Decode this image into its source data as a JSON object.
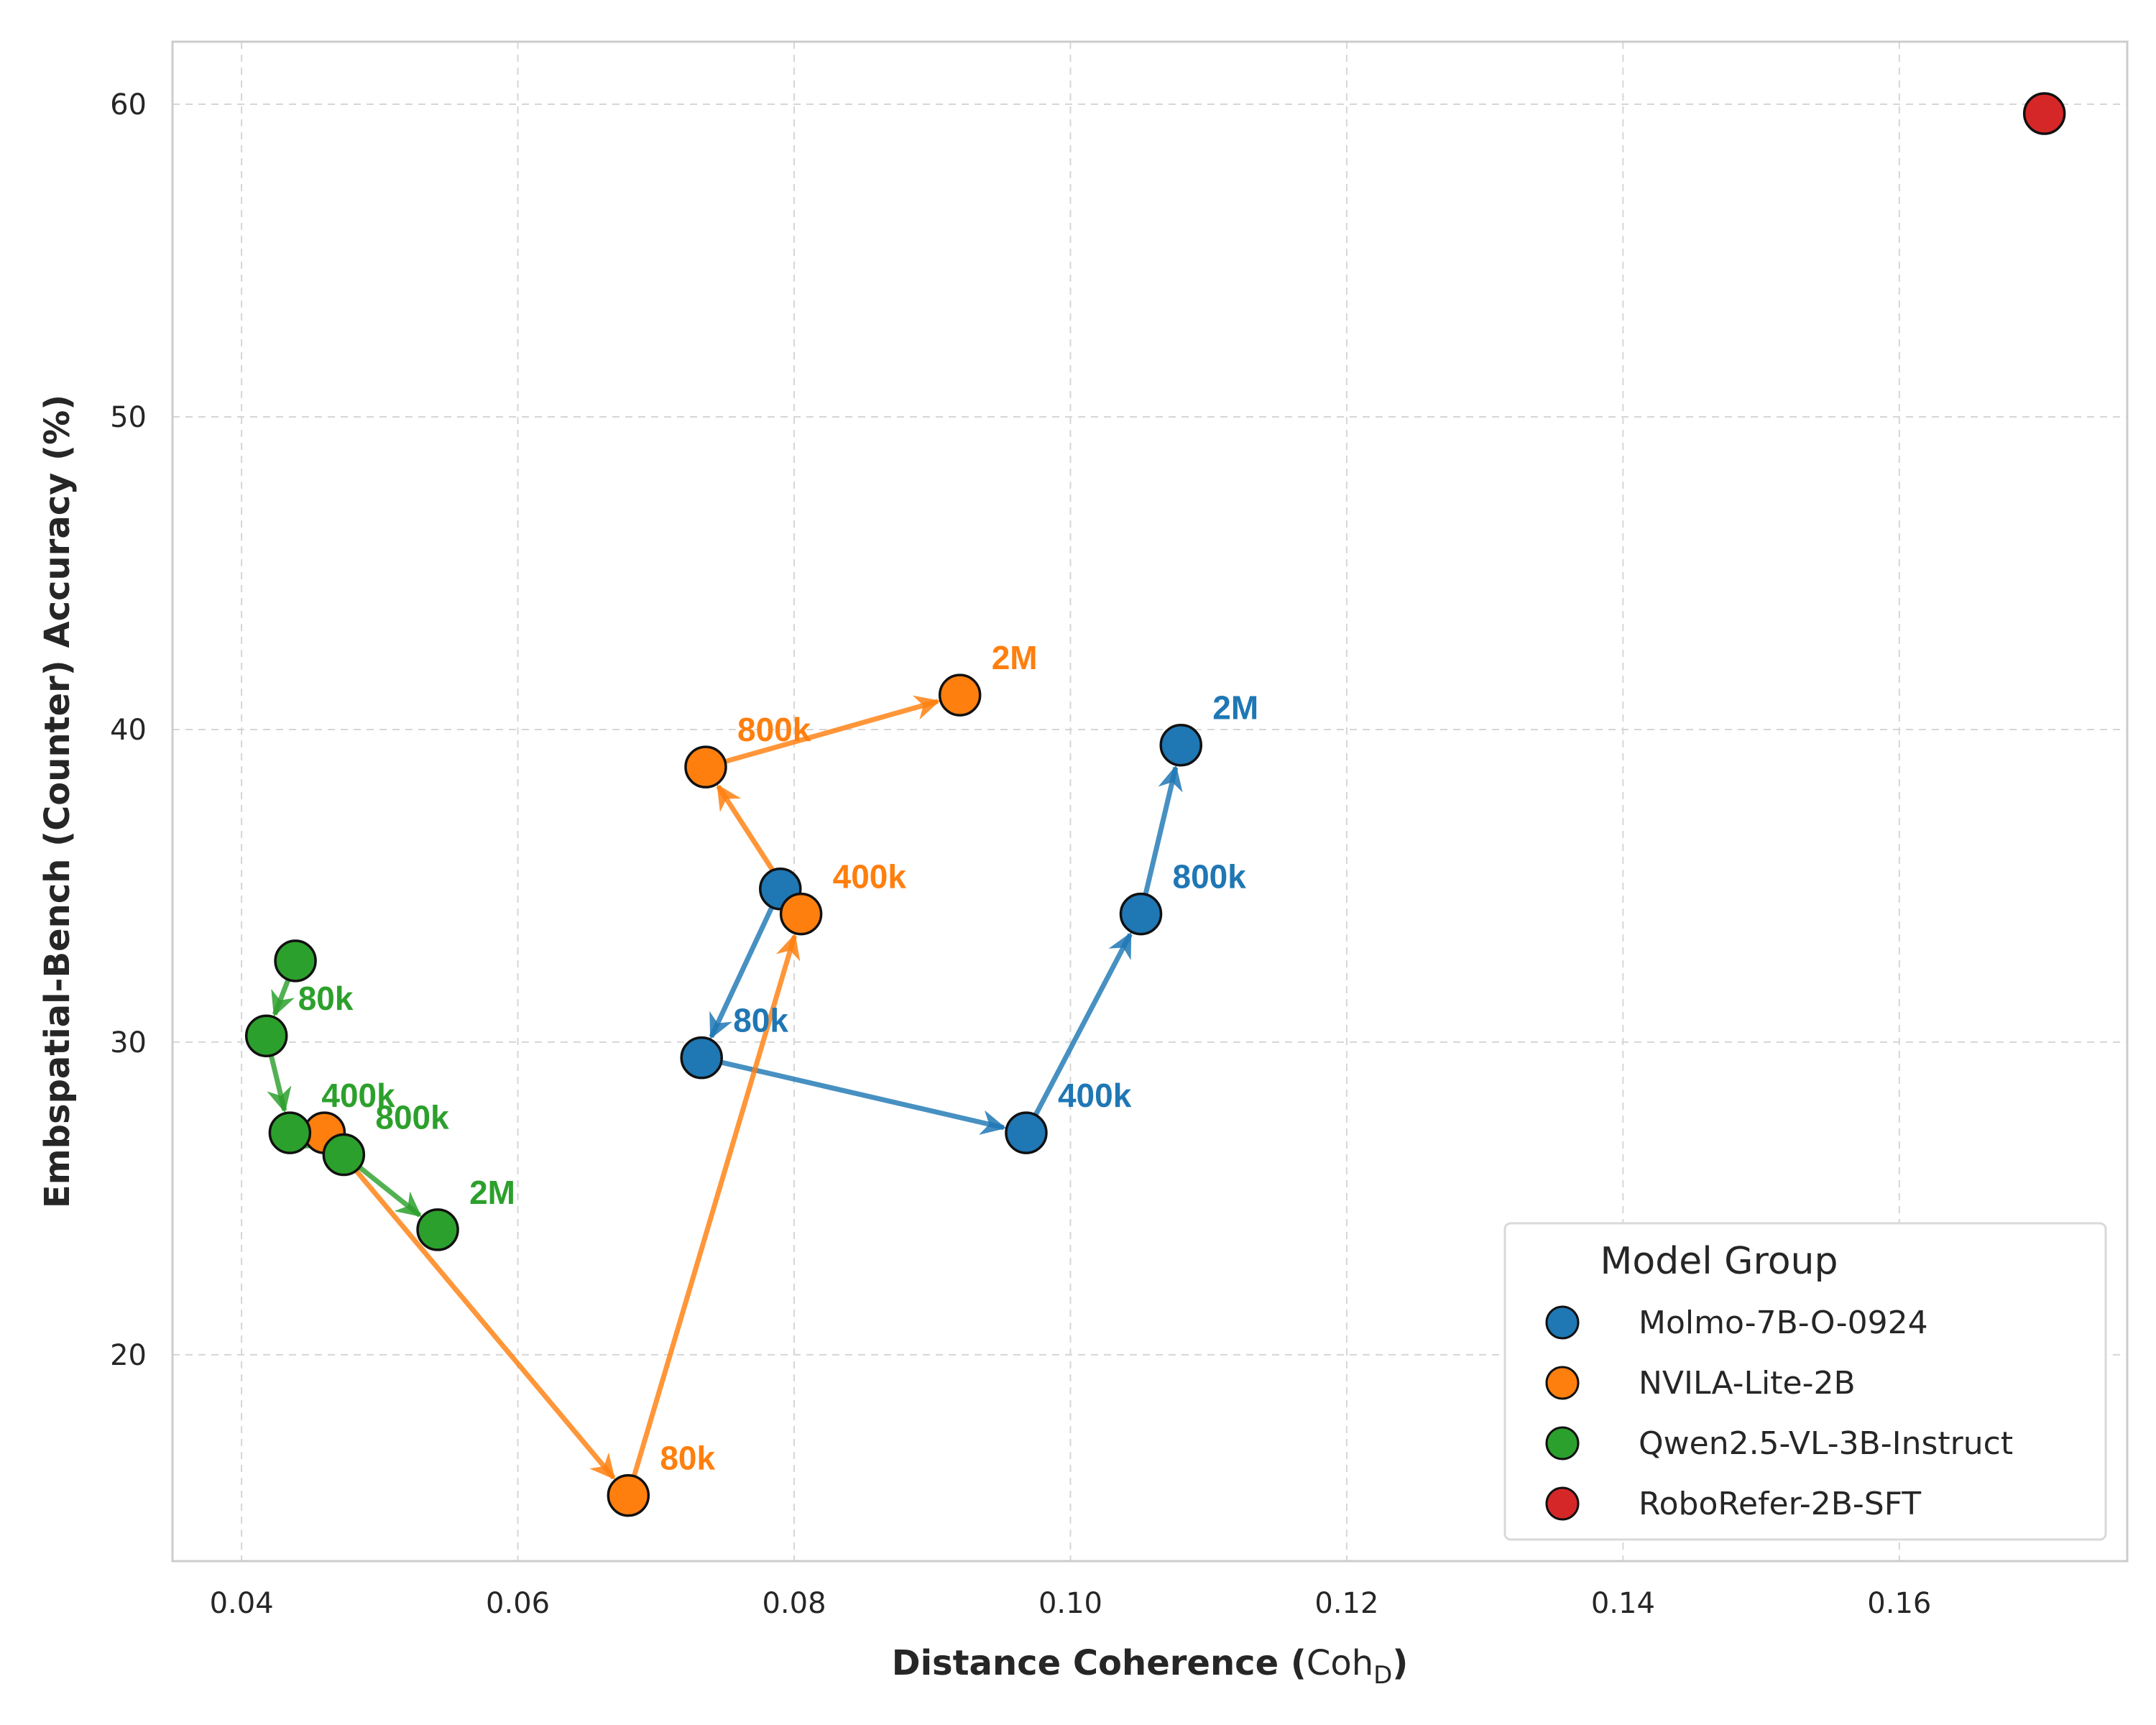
{
  "chart_data": {
    "type": "scatter",
    "title": "",
    "xlabel_main": "Distance Coherence",
    "xlabel_math": "Coh",
    "xlabel_sub": "D",
    "ylabel": "Embspatial-Bench (Counter) Accuracy (%)",
    "xlim": [
      0.035,
      0.1765
    ],
    "ylim": [
      13.4,
      62
    ],
    "xticks": [
      0.04,
      0.06,
      0.08,
      0.1,
      0.12,
      0.14,
      0.16
    ],
    "xtick_labels": [
      "0.04",
      "0.06",
      "0.08",
      "0.10",
      "0.12",
      "0.14",
      "0.16"
    ],
    "yticks": [
      20,
      30,
      40,
      50,
      60
    ],
    "ytick_labels": [
      "20",
      "30",
      "40",
      "50",
      "60"
    ],
    "grid": true,
    "legend": {
      "title": "Model Group",
      "placement": "lower-right"
    },
    "series": [
      {
        "name": "Molmo-7B-O-0924",
        "color": "#1f77b4",
        "points": [
          {
            "x": 0.079,
            "y": 34.9,
            "label": ""
          },
          {
            "x": 0.0733,
            "y": 29.5,
            "label": "80k"
          },
          {
            "x": 0.0968,
            "y": 27.1,
            "label": "400k"
          },
          {
            "x": 0.1051,
            "y": 34.1,
            "label": "800k"
          },
          {
            "x": 0.108,
            "y": 39.5,
            "label": "2M"
          }
        ]
      },
      {
        "name": "NVILA-Lite-2B",
        "color": "#ff7f0e",
        "points": [
          {
            "x": 0.046,
            "y": 27.1,
            "label": ""
          },
          {
            "x": 0.068,
            "y": 15.5,
            "label": "80k"
          },
          {
            "x": 0.0805,
            "y": 34.1,
            "label": "400k"
          },
          {
            "x": 0.0736,
            "y": 38.8,
            "label": "800k"
          },
          {
            "x": 0.092,
            "y": 41.1,
            "label": "2M"
          }
        ]
      },
      {
        "name": "Qwen2.5-VL-3B-Instruct",
        "color": "#2ca02c",
        "points": [
          {
            "x": 0.0439,
            "y": 32.6,
            "label": ""
          },
          {
            "x": 0.0418,
            "y": 30.2,
            "label": "80k"
          },
          {
            "x": 0.0435,
            "y": 27.1,
            "label": "400k"
          },
          {
            "x": 0.0474,
            "y": 26.4,
            "label": "800k"
          },
          {
            "x": 0.0542,
            "y": 24.0,
            "label": "2M"
          }
        ]
      },
      {
        "name": "RoboRefer-2B-SFT",
        "color": "#d62728",
        "points": [
          {
            "x": 0.1705,
            "y": 59.7,
            "label": ""
          }
        ]
      }
    ]
  }
}
